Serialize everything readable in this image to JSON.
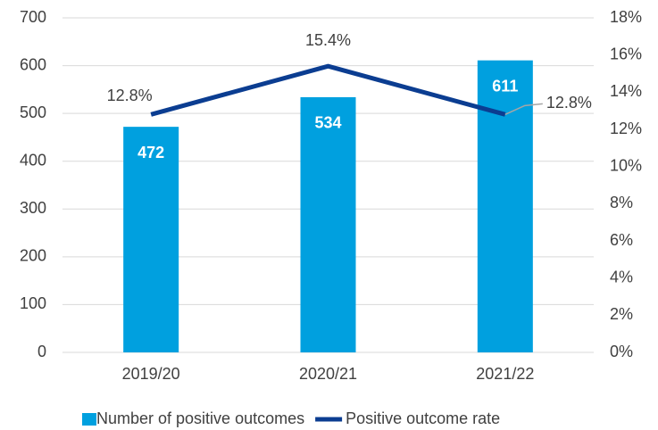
{
  "chart_data": {
    "type": "bar",
    "categories": [
      "2019/20",
      "2020/21",
      "2021/22"
    ],
    "series": [
      {
        "name": "Number of positive outcomes",
        "type": "bar",
        "color": "#00a0df",
        "values": [
          472,
          534,
          611
        ]
      },
      {
        "name": "Positive outcome rate",
        "type": "line",
        "axis": "y2",
        "color": "#0b3d91",
        "values": [
          12.8,
          15.4,
          12.8
        ],
        "value_labels": [
          "12.8%",
          "15.4%",
          "12.8%"
        ]
      }
    ],
    "ylim": [
      0,
      700
    ],
    "yticks": [
      0,
      100,
      200,
      300,
      400,
      500,
      600,
      700
    ],
    "y2lim": [
      0,
      18
    ],
    "y2ticks": [
      {
        "value": 0,
        "label": "0%"
      },
      {
        "value": 2,
        "label": "2%"
      },
      {
        "value": 4,
        "label": "4%"
      },
      {
        "value": 6,
        "label": "6%"
      },
      {
        "value": 8,
        "label": "8%"
      },
      {
        "value": 10,
        "label": "10%"
      },
      {
        "value": 12,
        "label": "12%"
      },
      {
        "value": 14,
        "label": "14%"
      },
      {
        "value": 16,
        "label": "16%"
      },
      {
        "value": 18,
        "label": "18%"
      }
    ],
    "grid": true,
    "legend": "bottom"
  }
}
